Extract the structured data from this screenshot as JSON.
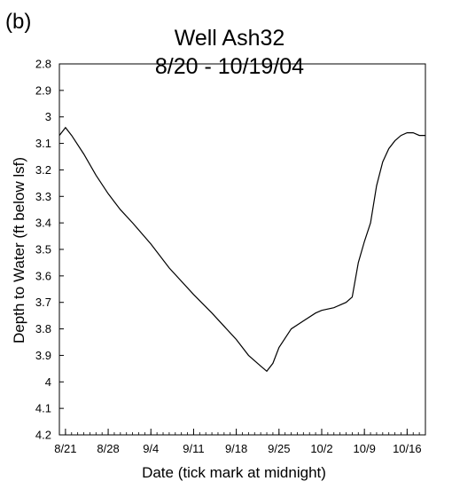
{
  "chart_data": {
    "type": "line",
    "panel_label": "(b)",
    "title": "Well Ash32",
    "subtitle": "8/20 - 10/19/04",
    "xlabel": "Date (tick mark at midnight)",
    "ylabel": "Depth to Water (ft below lsf)",
    "y_reversed": true,
    "ylim": [
      2.8,
      4.2
    ],
    "y_ticks": [
      "2.8",
      "2.9",
      "3",
      "3.1",
      "3.2",
      "3.3",
      "3.4",
      "3.5",
      "3.6",
      "3.7",
      "3.8",
      "3.9",
      "4",
      "4.1",
      "4.2"
    ],
    "xlim": [
      "2004-08-20",
      "2004-10-19"
    ],
    "x_ticks": [
      {
        "date": "2004-08-21",
        "label": "8/21"
      },
      {
        "date": "2004-08-28",
        "label": "8/28"
      },
      {
        "date": "2004-09-04",
        "label": "9/4"
      },
      {
        "date": "2004-09-11",
        "label": "9/11"
      },
      {
        "date": "2004-09-18",
        "label": "9/18"
      },
      {
        "date": "2004-09-25",
        "label": "9/25"
      },
      {
        "date": "2004-10-02",
        "label": "10/2"
      },
      {
        "date": "2004-10-09",
        "label": "10/9"
      },
      {
        "date": "2004-10-16",
        "label": "10/16"
      }
    ],
    "grid": false,
    "line_color": "#000000",
    "series": [
      {
        "x": [
          "2004-08-20",
          "2004-08-21",
          "2004-08-22",
          "2004-08-24",
          "2004-08-26",
          "2004-08-28",
          "2004-08-30",
          "2004-09-01",
          "2004-09-04",
          "2004-09-07",
          "2004-09-11",
          "2004-09-14",
          "2004-09-18",
          "2004-09-20",
          "2004-09-22",
          "2004-09-23",
          "2004-09-24",
          "2004-09-25",
          "2004-09-27",
          "2004-09-29",
          "2004-10-01",
          "2004-10-02",
          "2004-10-04",
          "2004-10-05",
          "2004-10-06",
          "2004-10-07",
          "2004-10-08",
          "2004-10-09",
          "2004-10-10",
          "2004-10-11",
          "2004-10-12",
          "2004-10-13",
          "2004-10-14",
          "2004-10-15",
          "2004-10-16",
          "2004-10-17",
          "2004-10-18",
          "2004-10-19"
        ],
        "values": [
          3.07,
          3.04,
          3.07,
          3.14,
          3.22,
          3.29,
          3.35,
          3.4,
          3.48,
          3.57,
          3.67,
          3.74,
          3.84,
          3.9,
          3.94,
          3.96,
          3.93,
          3.87,
          3.8,
          3.77,
          3.74,
          3.73,
          3.72,
          3.71,
          3.7,
          3.68,
          3.55,
          3.47,
          3.4,
          3.26,
          3.17,
          3.12,
          3.09,
          3.07,
          3.06,
          3.06,
          3.07,
          3.07
        ]
      }
    ]
  }
}
